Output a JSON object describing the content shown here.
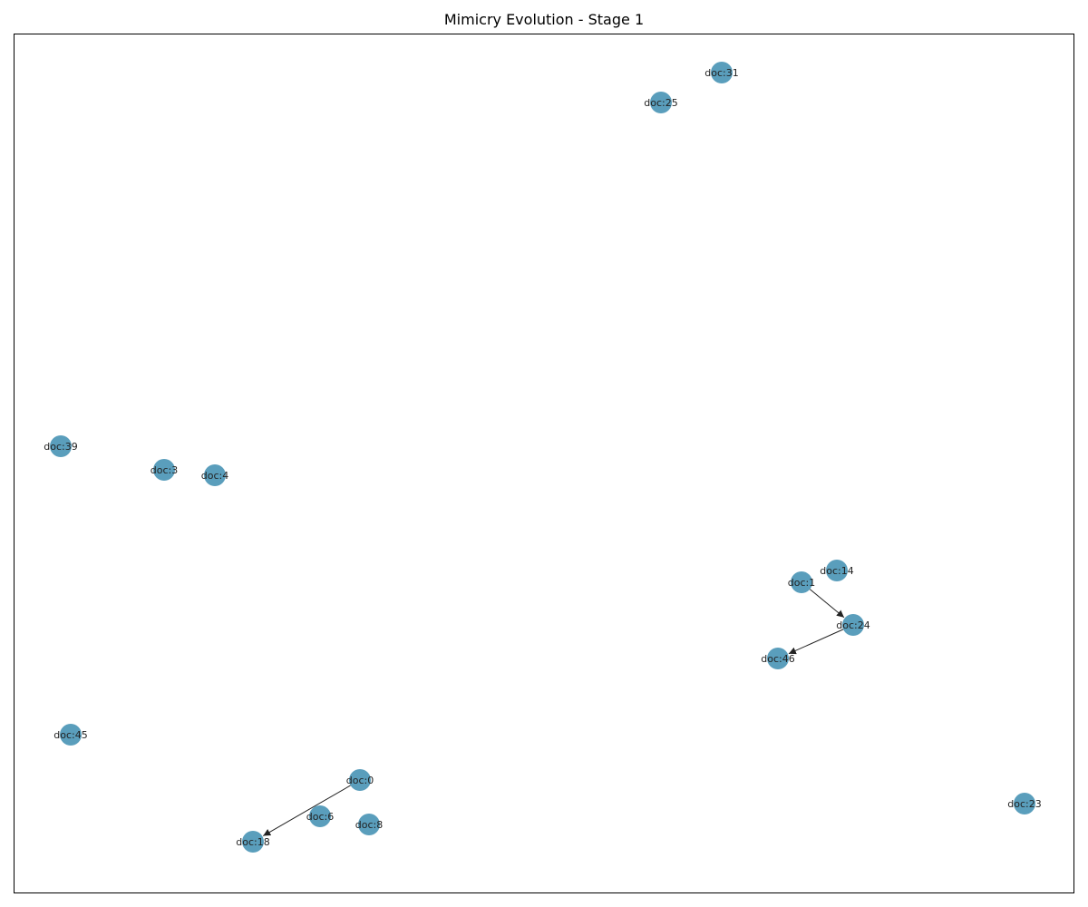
{
  "title": "Mimicry Evolution - Stage 1",
  "node_color": "#3d8db0",
  "edge_color": "#222222",
  "nodes": [
    {
      "id": "doc:31",
      "label": "doc:31"
    },
    {
      "id": "doc:25",
      "label": "doc:25"
    },
    {
      "id": "doc:39",
      "label": "doc:39"
    },
    {
      "id": "doc:3",
      "label": "doc:3"
    },
    {
      "id": "doc:4",
      "label": "doc:4"
    },
    {
      "id": "doc:14",
      "label": "doc:14"
    },
    {
      "id": "doc:1",
      "label": "doc:1"
    },
    {
      "id": "doc:24",
      "label": "doc:24"
    },
    {
      "id": "doc:46",
      "label": "doc:46"
    },
    {
      "id": "doc:45",
      "label": "doc:45"
    },
    {
      "id": "doc:0",
      "label": "doc:0"
    },
    {
      "id": "doc:6",
      "label": "doc:6"
    },
    {
      "id": "doc:8",
      "label": "doc:8"
    },
    {
      "id": "doc:18",
      "label": "doc:18"
    },
    {
      "id": "doc:23",
      "label": "doc:23"
    }
  ],
  "edges": [
    {
      "source": "doc:1",
      "target": "doc:24"
    },
    {
      "source": "doc:24",
      "target": "doc:46"
    },
    {
      "source": "doc:0",
      "target": "doc:18"
    }
  ]
}
